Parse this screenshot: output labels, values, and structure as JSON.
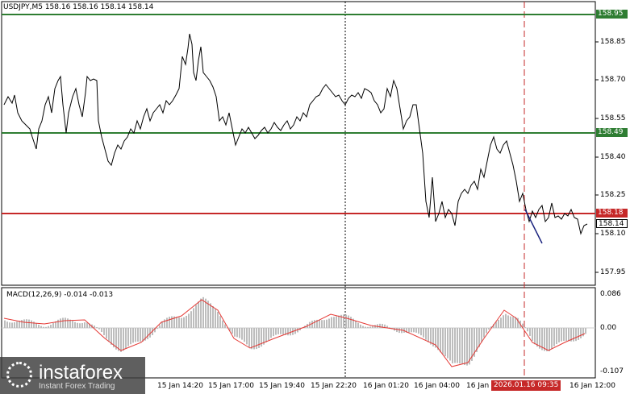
{
  "header": {
    "title": "USDJPY,M5  158.16 158.16 158.14 158.14"
  },
  "price_axis": [
    "158.85",
    "158.70",
    "158.55",
    "158.40",
    "158.25",
    "158.10",
    "157.95"
  ],
  "levels": [
    {
      "label": "158.95",
      "color": "#2e7d32"
    },
    {
      "label": "158.49",
      "color": "#2e7d32"
    },
    {
      "label": "158.18",
      "color": "#c62828"
    },
    {
      "label": "158.14",
      "color": "#ffffff"
    }
  ],
  "macd": {
    "title": "MACD(12,26,9) -0.014 -0.013",
    "axis": [
      "0.086",
      "0.00",
      "-0.107"
    ]
  },
  "time_axis": [
    "15 Jan 14:20",
    "15 Jan 17:00",
    "15 Jan 19:40",
    "15 Jan 22:20",
    "16 Jan 01:20",
    "16 Jan 04:00",
    "16 Jan",
    "16 Jan 12:00"
  ],
  "time_tag": "2026.01.16 09:35",
  "logo": {
    "name": "instaforex",
    "tagline": "Instant Forex Trading"
  },
  "colors": {
    "support": "#2e7d32",
    "resistance": "#c62828",
    "macd_signal": "#e53935",
    "histogram": "#bdbdbd",
    "trendline": "#1a237e"
  }
}
